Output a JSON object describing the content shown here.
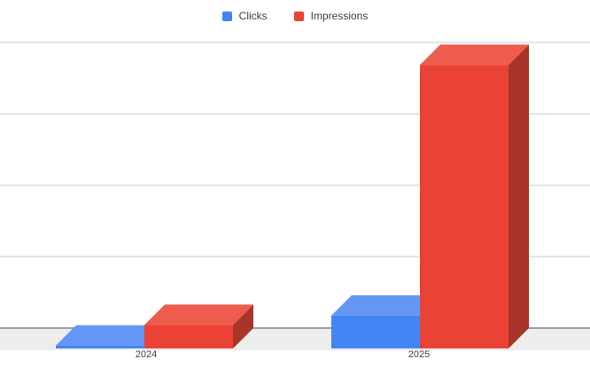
{
  "chart_data": {
    "type": "bar",
    "projection": "3d-column",
    "title": "",
    "xlabel": "",
    "ylabel": "",
    "categories": [
      "2024",
      "2025"
    ],
    "series": [
      {
        "name": "Clicks",
        "color": "#4285f4",
        "color_top": "#6496f5",
        "color_side": "#2a56c6",
        "values": [
          40,
          460
        ]
      },
      {
        "name": "Impressions",
        "color": "#ea4335",
        "color_top": "#ee5c4e",
        "color_side": "#a93428",
        "values": [
          330,
          3970
        ]
      }
    ],
    "ylim": [
      0,
      4000
    ],
    "gridline_count": 5,
    "y_axis_tick_labels": [],
    "y_axis_labels_visible": false,
    "legend_position": "top",
    "grid_on": true,
    "colors": {
      "background": "#ffffff",
      "gridline": "#e4e4e4",
      "baseline": "#9e9e9e",
      "floor": "#ededed"
    }
  }
}
